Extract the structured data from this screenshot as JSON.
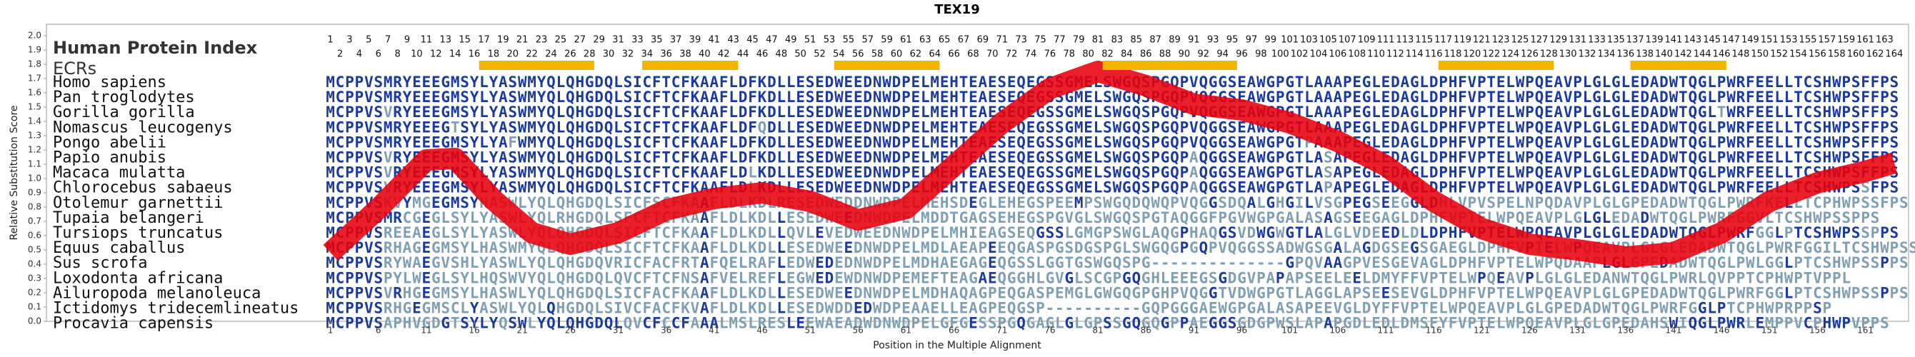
{
  "chart_data": {
    "type": "line",
    "title": "TEX19",
    "xlabel": "Position in the Multiple Alignment",
    "ylabel": "Relative Substitution Score",
    "xlim": [
      -28.6,
      165.5
    ],
    "ylim": [
      0,
      2.08
    ],
    "xticks": [
      1,
      6,
      11,
      16,
      21,
      26,
      31,
      36,
      41,
      46,
      51,
      56,
      61,
      66,
      71,
      76,
      81,
      86,
      91,
      96,
      101,
      106,
      111,
      116,
      121,
      126,
      131,
      136,
      141,
      146,
      151,
      156,
      161
    ],
    "yticks": [
      {
        "value": 0,
        "label": "0.0"
      },
      0.1,
      0.2,
      0.3,
      0.4,
      0.5,
      0.6,
      0.7,
      0.8,
      0.9,
      {
        "value": 1,
        "label": "1.0"
      },
      1.1,
      1.2,
      1.3,
      1.4,
      1.5,
      1.6,
      1.7,
      1.8,
      1.9,
      {
        "value": 2,
        "label": "2.0"
      }
    ],
    "x": [
      1,
      6,
      11,
      14,
      18,
      22,
      26,
      31,
      36,
      41,
      46,
      51,
      56,
      61,
      66,
      71,
      76,
      81,
      86,
      91,
      96,
      101,
      106,
      111,
      116,
      121,
      126,
      131,
      136,
      141,
      146,
      151,
      156,
      161,
      164
    ],
    "values": [
      0.48,
      0.79,
      1.13,
      1.14,
      0.85,
      0.62,
      0.54,
      0.62,
      0.78,
      0.86,
      0.9,
      0.84,
      0.71,
      0.79,
      1.09,
      1.39,
      1.63,
      1.75,
      1.65,
      1.52,
      1.48,
      1.39,
      1.26,
      1.09,
      0.84,
      0.65,
      0.54,
      0.5,
      0.45,
      0.48,
      0.62,
      0.84,
      0.97,
      1.05,
      1.11
    ],
    "color": "#e8000b",
    "index_label": "Human Protein Index",
    "ecr_label": "ECRs",
    "ecr_color": "#f5b400",
    "ecrs": [
      {
        "start": 17,
        "end": 28
      },
      {
        "start": 34,
        "end": 43
      },
      {
        "start": 54,
        "end": 64
      },
      {
        "start": 82,
        "end": 95
      },
      {
        "start": 117,
        "end": 128
      },
      {
        "start": 137,
        "end": 146
      }
    ],
    "column_numbers_odd": [
      1,
      3,
      5,
      7,
      9,
      11,
      13,
      15,
      17,
      19,
      21,
      23,
      25,
      27,
      29,
      31,
      33,
      35,
      37,
      39,
      41,
      43,
      45,
      47,
      49,
      51,
      53,
      55,
      57,
      59,
      61,
      63,
      65,
      67,
      69,
      71,
      73,
      75,
      77,
      79,
      81,
      83,
      85,
      87,
      89,
      91,
      93,
      95,
      97,
      99,
      101,
      103,
      105,
      107,
      109,
      111,
      113,
      115,
      117,
      119,
      121,
      123,
      125,
      127,
      129,
      131,
      133,
      135,
      137,
      139,
      141,
      143,
      145,
      147,
      149,
      151,
      153,
      155,
      157,
      159,
      161,
      163
    ],
    "column_numbers_even": [
      2,
      4,
      6,
      8,
      10,
      12,
      14,
      16,
      18,
      20,
      22,
      24,
      26,
      28,
      30,
      32,
      34,
      36,
      38,
      40,
      42,
      44,
      46,
      48,
      50,
      52,
      54,
      56,
      58,
      60,
      62,
      64,
      66,
      68,
      70,
      72,
      74,
      76,
      78,
      80,
      82,
      84,
      86,
      88,
      90,
      92,
      94,
      96,
      98,
      100,
      102,
      104,
      106,
      108,
      110,
      112,
      114,
      116,
      118,
      120,
      122,
      124,
      126,
      128,
      130,
      132,
      134,
      136,
      138,
      140,
      142,
      144,
      146,
      148,
      150,
      152,
      154,
      156,
      158,
      160,
      162,
      164
    ],
    "alignment": [
      {
        "name": "Homo sapiens",
        "sequence": "MCPPVSMRYEEEGMSYLYASWMYQLQHGDQLSICFTCFKAAFLDFKDLLESEDWEEDNWDPELMEHTEAESEQEGSSGMELSWGQSPGQPVQGGSEAWGPGTLAAAPEGLEDAGLDPHFVPTELWPQEAVPLGLGLEDADWTQGLPWRFEELLTCSHWPSFFPS"
      },
      {
        "name": "Pan troglodytes",
        "sequence": "MCPPVSMRYEEEGMSYLYASWMYQLQHGDQLSICFTCFKAAFLDFKDLLESEDWEEDNWDPELMEHTEAESEQEGSSGMELSWGQSPGQPVQGGSEAWGPGTLAAAPEGLEDAGLDPHFVPTELWPQEAVPLGLGLEDADWTQGLPWRFEELLTCSHWPSFFPS"
      },
      {
        "name": "Gorilla gorilla",
        "sequence": "MCPPVSVRYEEEGMSYLYASWMYQLQHGDQLSICFTCFKAAFLDFKDLLESEDWEEDNWDPELMEHTEAESEQEGSSGMELSWGQSPGQPVQGGSEAWGPGTLAAAPEGLEDAGLDPHFVPTELWPQEAVPLGLGLEDADWTQGLTWRFEELLTCSHWPSFFPS"
      },
      {
        "name": "Nomascus leucogenys",
        "sequence": "MCPPVSMRYEEEGTSYLYASWMYQLQHGDQLSICFTCFKAAFLDFQDLLESEDWEEDNWDPELMEHTEAESEQEGSSGMELSWGQSPGQPVQGGSEAWGPGTLAAAPEGLEDAGLDPHFVPTELWPQEAVPLGLGLEDADWTQGLPWRFEELLTCSHWPSFFPS"
      },
      {
        "name": "Pongo abelii",
        "sequence": "MCPPVSMRYEEEGMSYLYAFWMYQLQHGDQLSICFTCFKAAFLDFKDLLESEDWEEDNWDPELMEHTEAESEQEGSSGMELSWGQSPGQPVQGGSEAWGPGTPAAAPEGLEDAGLDPHFVPTELWPQEAVPLGLGLEDADWTQGLPWRFEELLTCSHWPSFFPS"
      },
      {
        "name": "Papio anubis",
        "sequence": "MCPPVSVRYEEEGMSYLYASWMYQLQHGDQLSICFTCFKAAFLDFKDLLESEDWEEDNWDPELMEHTEAESEQEGSSGMELSWGQSPGQPAQGGSEAWGPGTLASAPEGLEDAGLDPHFVPTELWPQEAVPLGLGLEDADWTQGLPWRFEELLTCSHWPSFFPS"
      },
      {
        "name": "Macaca mulatta",
        "sequence": "MCPPVSVRYEEEGMSYLYASWMYQLQHGDQLSICFTCFKAAFLDLKDLLESEDWEEDNWDPELMEHTEAESEQEGSSGMELSWGQSPGQPAQGGSEAWGPGTLASAPEGLEDAGLDPHFVPTELWPQEAVPLGLGLEDADWTQGLPWRFEELLTCSHWPSFFPS"
      },
      {
        "name": "Chlorocebus sabaeus",
        "sequence": "MCPPVSVRYEEEGMSYLYASWMYQLQHGDQLSICFTCFKAAFLDLKDLLESEDWEEDNWDPELMEHTEAESEQEGSSGMELSWGQSPGQPAQGGSEAWGPGTLAPAPEGLEDAGLDPHFVPTELWPQEAVPLGLGLEDADWTQGLPWRFEELLTCSHWPSSFPS"
      },
      {
        "name": "Otolemur garnettii",
        "sequence": "MCPPVSKVYMGEGMSYHASWLYQLQHGDQLSICFSCFKAAFLDLKDLRESEDWEDDNWDPELMEHSDEGLEHEGSPEEMPSWGQDQWQPVQGGSDQALGHGILVSGPEGSEEGGLDHLVPVSPELNPQDAVPLGLGPEDADWTQGLPWRFKELLTCPHWPSSFPS"
      },
      {
        "name": "Tupaia belangeri",
        "sequence": "MCPPVSMRCGEGLSYLYASWLYQLRHGDQLSFCFTCFKAAFLDLKDLLESEDWEEDNWDPELMDDTGAGSEHEGSPGVGLSWGQSPGTAQGGFPGVWGPGALASAGSEEGAGLDPHFVPTELWPQEAVPLGLGLEDADWTQGLPWRFGGVLTCSHWPSSPPS"
      },
      {
        "name": "Tursiops truncatus",
        "sequence": "MCPPVSREEAEGLSYLYASWLYQLQHGDQLSICFTCFKAAFLDLKDLLQVLEVEDWEEDNWDPELMHIEAGSEQGSSLGMGPSWGLAQGPHAQGSVDWGWGTLALGLVDEEDLDLDPHFVPTELWPQEAVPLGLGLEDADWTQGLPWRFGGLPTCSHWPSSPPS"
      },
      {
        "name": "Equus caballus",
        "sequence": "MCPPVSRHAGEGMSYLHASWMYQLQHGDQLSICFTCFKAAFLDLKDLLESEDWEEDNWDPELMDLAEAPEEQGASPGSDGSPGLSWGQGPGQPVQGGSSADWGSGALAGDGSEGSGAEGLDPHFVPTELWPQEAVPLGLGLEDADWTQGLPWRFGGILTCSHWPSSPPS"
      },
      {
        "name": "Sus scrofa",
        "sequence": "MCPPVSRYWAEGVSHLYASWLYQLQHGDQVRICFACFRTAFQELRAFLEDWEDEDNWDPELMDHAEGAGEQGSSLGGTGSWGQSPG--------------GPQVAAGPVESGEVAGLDPHFVPTELWPQDAAPLGLGPEDADWTQGLPWLGGLPTCSHWPSSPPS"
      },
      {
        "name": "Loxodonta africana",
        "sequence": "MCPPVSPYLWEGLSYLHQSWVYQLQHGDQLQVCFTCFNSAFVELREFLEGWEDEWDNWDPEMEFTEAGAEQGGHLGVGLSCGPGQGHLEEEGSGDGVPAPAPSEELEELDMYFFVPTELWPQEAVPLGLGLEDANWTQGLPWRLQVPPTCPHWPTVPPL"
      },
      {
        "name": "Ailuropoda melanoleuca",
        "sequence": "MCPPVSVRHGEGMSYLHASWLYQLQHGDQLSICFACFKAAFLDLKDLLESEDWEEDNWDPELMDHAQAGPEQGASPEMGLGWGQGPGHPVQGGTVDWGPGTLAGGLAPSEESEVGLDPHFVPTELWPQEAVPLGLGPEDADWTQGLPWRFGGLPTCSHWPSSPPS"
      },
      {
        "name": "Ictidomys tridecemlineatus",
        "sequence": "MCPPVSRHGEGMSCLYASWLYQLQHGDQLSIVCFACFKVAFLDLKDLLESEDWDDEDWDPEAAELLEAGPEQGSP----------GQPGGGAEWGPGALASAPEEVGLDYFFVPTELWPQEAVPLGLGPEDADWTQGLPWRFGGLPTCPHWPRPPSP"
      },
      {
        "name": "Procavia capensis",
        "sequence": "MCPPVSAPHVGDGTSYLYQSWLYQLQHGDQLQVCFCCFAAALMSLRESLEEWAEADWDNWDPELGFGESSPGQGAGLGLGPSSGQGQGPPAEGGSGDGPWSLAPAPGDLEDLDMSFYFVPTELWPQEAVPLGLGPEDAHSWIQGLPWRLEMPPVCPHWPVPPS"
      }
    ]
  }
}
